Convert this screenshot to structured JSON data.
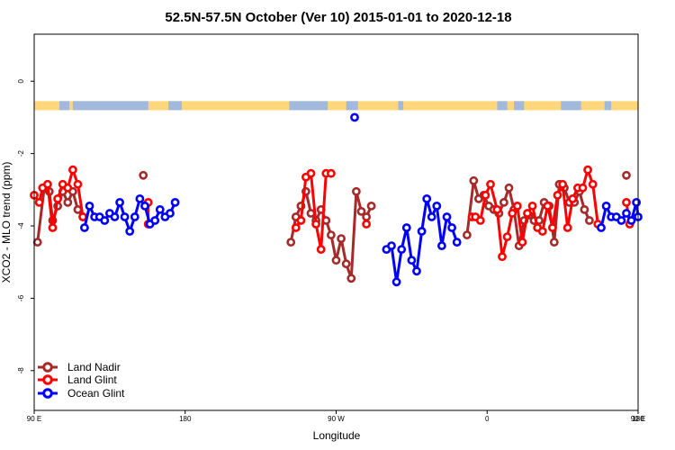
{
  "chart_data": {
    "type": "line",
    "title": "52.5N-57.5N October (Ver 10)   2015-01-01 to 2020-12-18",
    "xlabel": "Longitude",
    "ylabel": "XCO2 - MLO trend (ppm)",
    "xlim": [
      90,
      450
    ],
    "ylim": [
      -9.1,
      1.3
    ],
    "x_tick_values": [
      90,
      180,
      270,
      360,
      450,
      540
    ],
    "x_tick_labels": [
      "90 E",
      "180",
      "90 W",
      "0",
      "90 E",
      "180"
    ],
    "y_tick_values": [
      0,
      -2,
      -4,
      -6,
      -8
    ],
    "y_tick_labels": [
      "0",
      "-2",
      "-4",
      "-6",
      "-8"
    ],
    "colors": {
      "land_nadir": "#a52a2a",
      "land_glint": "#ff0000",
      "ocean_glint": "#0000ff",
      "land_band": "#ffd77a",
      "ocean_band": "#a2b9de"
    },
    "legend": [
      "Land Nadir",
      "Land Glint",
      "Ocean Glint"
    ],
    "series": [
      {
        "name": "Land Nadir",
        "key": "land_nadir",
        "segments": [
          [
            [
              92,
              -4.45
            ],
            [
              96,
              -2.95
            ],
            [
              99,
              -3.05
            ],
            [
              101,
              -3.85
            ],
            [
              104,
              -3.45
            ],
            [
              107,
              -3.05
            ],
            [
              110,
              -3.35
            ],
            [
              113,
              -3.05
            ],
            [
              116,
              -3.55
            ],
            [
              119,
              -3.75
            ]
          ],
          [
            [
              243,
              -4.45
            ],
            [
              246,
              -3.75
            ],
            [
              249,
              -3.45
            ],
            [
              252,
              -3.05
            ],
            [
              255,
              -3.65
            ],
            [
              258,
              -3.85
            ],
            [
              261,
              -3.55
            ],
            [
              264,
              -3.85
            ],
            [
              267,
              -4.25
            ],
            [
              270,
              -4.95
            ],
            [
              273,
              -4.35
            ],
            [
              276,
              -5.05
            ],
            [
              279,
              -5.45
            ],
            [
              282,
              -3.05
            ],
            [
              285,
              -3.6
            ],
            [
              288,
              -3.75
            ],
            [
              291,
              -3.45
            ]
          ],
          [
            [
              348,
              -4.25
            ],
            [
              352,
              -2.75
            ],
            [
              355,
              -3.25
            ],
            [
              358,
              -3.15
            ],
            [
              361,
              -3.45
            ],
            [
              364,
              -3.55
            ],
            [
              367,
              -3.65
            ],
            [
              370,
              -3.35
            ],
            [
              373,
              -2.95
            ],
            [
              376,
              -3.55
            ],
            [
              379,
              -4.55
            ],
            [
              382,
              -3.85
            ],
            [
              385,
              -3.7
            ],
            [
              388,
              -3.85
            ],
            [
              391,
              -3.85
            ],
            [
              394,
              -3.35
            ],
            [
              397,
              -3.45
            ],
            [
              400,
              -4.45
            ],
            [
              403,
              -2.85
            ],
            [
              406,
              -2.95
            ],
            [
              409,
              -3.35
            ],
            [
              412,
              -3.35
            ],
            [
              415,
              -3.05
            ],
            [
              418,
              -3.55
            ],
            [
              421,
              -3.85
            ]
          ],
          [
            [
              155,
              -2.6
            ]
          ],
          [
            [
              443,
              -2.6
            ]
          ]
        ]
      },
      {
        "name": "Land Glint",
        "key": "land_glint",
        "segments": [
          [
            [
              90,
              -3.15
            ],
            [
              93,
              -3.35
            ],
            [
              95,
              -2.95
            ],
            [
              98,
              -2.85
            ],
            [
              101,
              -4.05
            ],
            [
              104,
              -3.25
            ],
            [
              107,
              -2.85
            ],
            [
              110,
              -2.95
            ],
            [
              113,
              -2.45
            ],
            [
              116,
              -2.85
            ],
            [
              119,
              -3.75
            ]
          ],
          [
            [
              246,
              -4.05
            ],
            [
              249,
              -3.85
            ],
            [
              252,
              -2.65
            ],
            [
              255,
              -2.55
            ],
            [
              258,
              -3.95
            ],
            [
              261,
              -4.65
            ],
            [
              264,
              -2.55
            ],
            [
              267,
              -2.55
            ]
          ],
          [
            [
              351,
              -3.75
            ],
            [
              353,
              -3.75
            ],
            [
              356,
              -3.85
            ],
            [
              359,
              -3.15
            ],
            [
              362,
              -2.85
            ],
            [
              366,
              -3.55
            ],
            [
              369,
              -4.85
            ],
            [
              372,
              -4.3
            ],
            [
              375,
              -3.65
            ],
            [
              378,
              -3.45
            ],
            [
              381,
              -4.45
            ],
            [
              384,
              -3.65
            ],
            [
              387,
              -3.45
            ],
            [
              390,
              -4.05
            ],
            [
              393,
              -4.15
            ],
            [
              396,
              -3.45
            ],
            [
              399,
              -4.05
            ],
            [
              402,
              -3.15
            ],
            [
              405,
              -2.85
            ],
            [
              408,
              -4.05
            ],
            [
              411,
              -3.25
            ],
            [
              414,
              -2.95
            ],
            [
              417,
              -2.95
            ],
            [
              420,
              -2.45
            ],
            [
              423,
              -2.85
            ],
            [
              426,
              -3.95
            ]
          ],
          [
            [
              158,
              -3.35
            ],
            [
              158,
              -3.95
            ]
          ],
          [
            [
              288,
              -3.95
            ]
          ],
          [
            [
              443,
              -3.35
            ],
            [
              445,
              -3.95
            ]
          ]
        ]
      },
      {
        "name": "Ocean Glint",
        "key": "ocean_glint",
        "segments": [
          [
            [
              120,
              -4.05
            ],
            [
              123,
              -3.45
            ],
            [
              126,
              -3.75
            ],
            [
              129,
              -3.75
            ],
            [
              132,
              -3.85
            ],
            [
              135,
              -3.65
            ],
            [
              138,
              -3.75
            ],
            [
              141,
              -3.35
            ],
            [
              144,
              -3.75
            ],
            [
              147,
              -4.15
            ],
            [
              150,
              -3.75
            ],
            [
              153,
              -3.25
            ],
            [
              156,
              -3.45
            ],
            [
              159,
              -3.95
            ],
            [
              162,
              -3.85
            ],
            [
              165,
              -3.55
            ],
            [
              168,
              -3.75
            ],
            [
              171,
              -3.65
            ],
            [
              174,
              -3.35
            ]
          ],
          [
            [
              281,
              -1.0
            ]
          ],
          [
            [
              300,
              -4.65
            ],
            [
              303,
              -4.55
            ],
            [
              306,
              -5.55
            ],
            [
              309,
              -4.65
            ],
            [
              312,
              -4.05
            ],
            [
              315,
              -4.95
            ],
            [
              318,
              -5.25
            ],
            [
              321,
              -4.15
            ],
            [
              324,
              -3.25
            ],
            [
              327,
              -3.75
            ],
            [
              330,
              -3.45
            ],
            [
              333,
              -4.55
            ],
            [
              336,
              -3.75
            ],
            [
              339,
              -4.05
            ],
            [
              342,
              -4.45
            ]
          ],
          [
            [
              428,
              -4.05
            ],
            [
              431,
              -3.45
            ],
            [
              434,
              -3.75
            ],
            [
              437,
              -3.75
            ],
            [
              440,
              -3.85
            ],
            [
              443,
              -3.65
            ],
            [
              446,
              -3.85
            ],
            [
              449,
              -3.35
            ],
            [
              450,
              -3.75
            ]
          ]
        ]
      }
    ],
    "band": {
      "y_top": -0.55,
      "y_bottom": -0.8,
      "ocean_ranges": [
        [
          105,
          111
        ],
        [
          113,
          158
        ],
        [
          170,
          178
        ],
        [
          242,
          265
        ],
        [
          276,
          283
        ],
        [
          307,
          310
        ],
        [
          366,
          372
        ],
        [
          376,
          382
        ],
        [
          404,
          416
        ],
        [
          430,
          434
        ]
      ]
    }
  }
}
